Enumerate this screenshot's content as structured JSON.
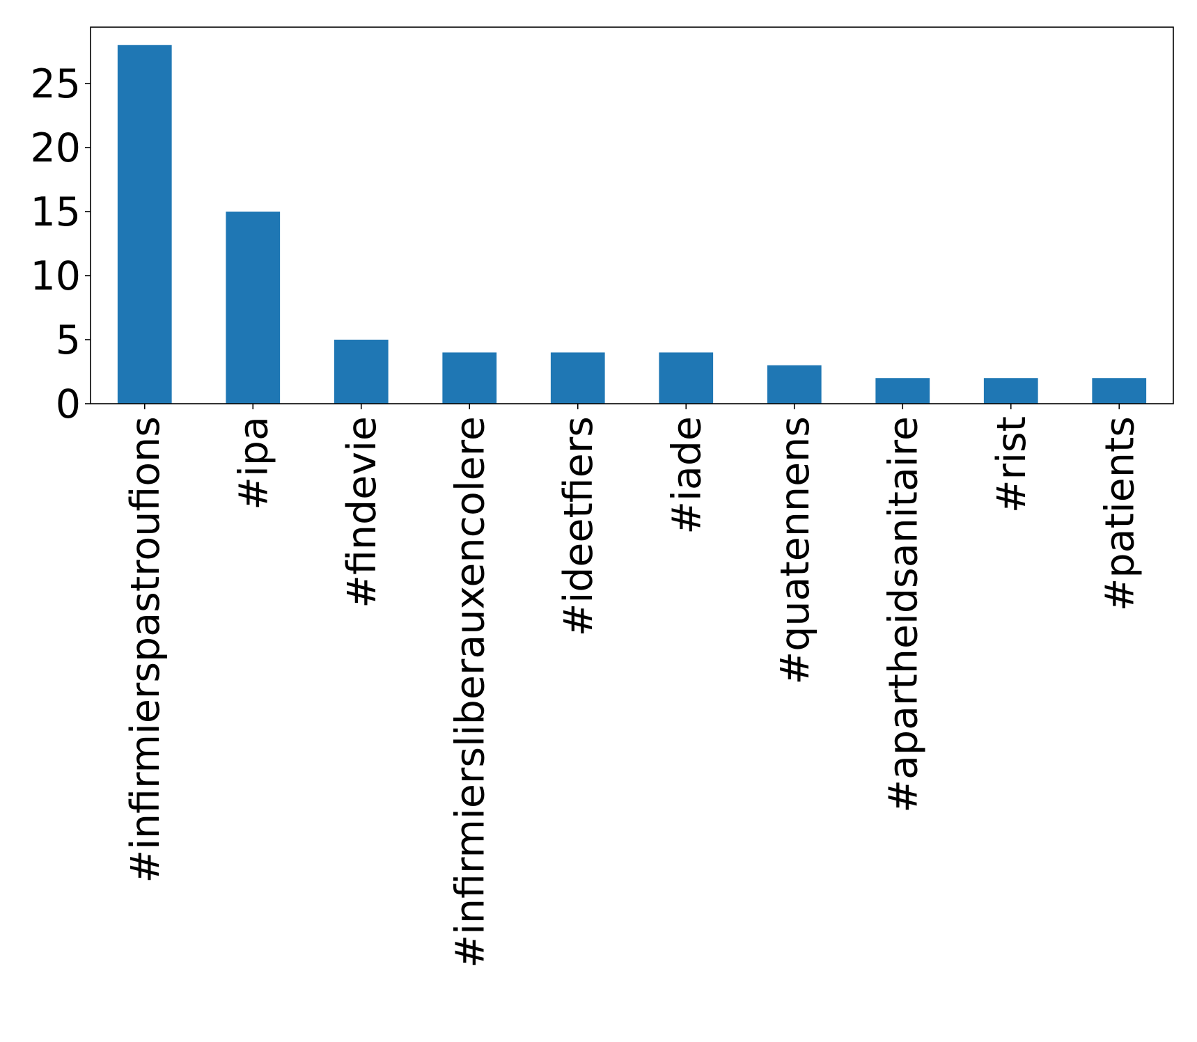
{
  "chart_data": {
    "type": "bar",
    "title": "",
    "xlabel": "",
    "ylabel": "",
    "categories": [
      "#infirmierspastroufions",
      "#ipa",
      "#findevie",
      "#infirmiersliberauxencolere",
      "#ideetfiers",
      "#iade",
      "#quatennens",
      "#apartheidsanitaire",
      "#rist",
      "#patients"
    ],
    "values": [
      28,
      15,
      5,
      4,
      4,
      4,
      3,
      2,
      2,
      2
    ],
    "ylim": [
      0,
      29.4
    ],
    "yticks": [
      0,
      5,
      10,
      15,
      20,
      25
    ],
    "ytick_labels": [
      "0",
      "5",
      "10",
      "15",
      "20",
      "25"
    ],
    "grid": false,
    "legend": "none",
    "bar_color": "#1f77b4"
  }
}
